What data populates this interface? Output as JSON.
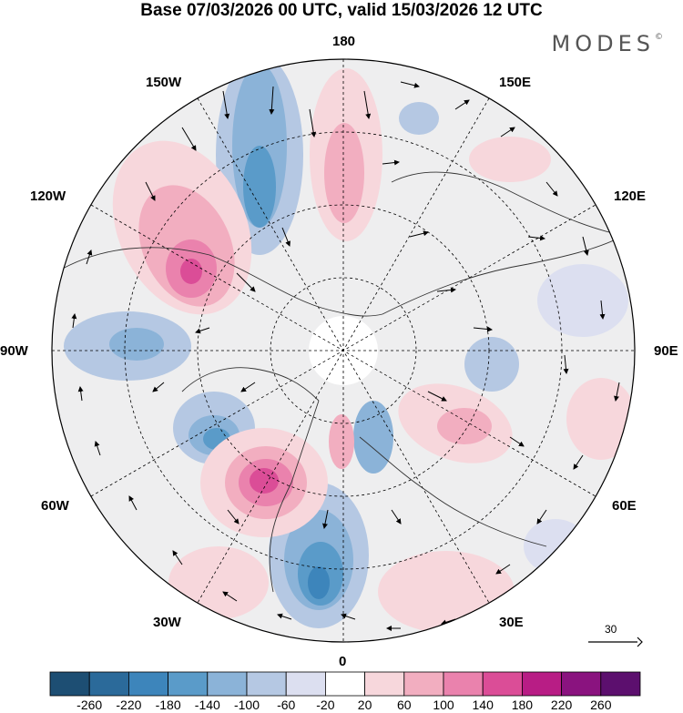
{
  "header": {
    "title": "Base 07/03/2026 00 UTC, valid 15/03/2026 12 UTC",
    "brand": "MODES",
    "brand_mark": "©"
  },
  "map": {
    "projection": "polar stereographic (north pole)",
    "longitude_labels": {
      "top": "180",
      "bottom": "0",
      "left": "90W",
      "right": "90E",
      "upper_left_1": "150W",
      "upper_left_2": "120W",
      "upper_right_1": "150E",
      "upper_right_2": "120E",
      "lower_left_1": "60W",
      "lower_left_2": "30W",
      "lower_right_1": "60E",
      "lower_right_2": "30E"
    },
    "vector_scale_label": "30"
  },
  "colorbar": {
    "ticks": [
      "-260",
      "-220",
      "-180",
      "-140",
      "-100",
      "-60",
      "-20",
      "20",
      "60",
      "100",
      "140",
      "180",
      "220",
      "260"
    ],
    "colors": [
      "#1d4e73",
      "#2b6a9a",
      "#3d85bb",
      "#5a9bc9",
      "#8bb3d8",
      "#b5c8e3",
      "#dcdff0",
      "#ffffff",
      "#f7d7dc",
      "#f2aec0",
      "#ea82ad",
      "#db4d97",
      "#b81d85",
      "#8a137f",
      "#5c0f6e"
    ]
  }
}
